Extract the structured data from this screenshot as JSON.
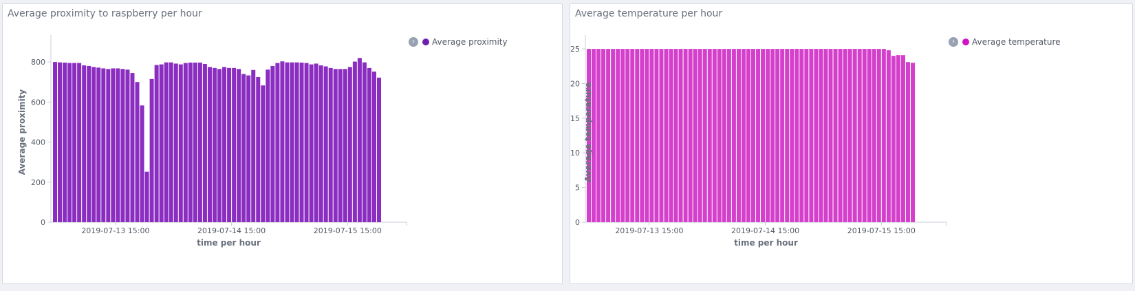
{
  "chart_data": [
    {
      "type": "bar",
      "title": "Average proximity to raspberry per hour",
      "xlabel": "time per hour",
      "ylabel": "Average proximity",
      "ylim": [
        0,
        900
      ],
      "yticks": [
        0,
        200,
        400,
        600,
        800
      ],
      "xtick_labels": [
        "2019-07-13 15:00",
        "2019-07-14 15:00",
        "2019-07-15 15:00"
      ],
      "xtick_positions": [
        12.5,
        36.5,
        60.5
      ],
      "grid": false,
      "legend": "top-right",
      "color": "#8a2dc0",
      "series": [
        {
          "name": "Average proximity",
          "values": [
            800,
            798,
            797,
            795,
            795,
            795,
            783,
            780,
            775,
            772,
            768,
            765,
            768,
            768,
            765,
            762,
            745,
            700,
            583,
            252,
            715,
            785,
            788,
            798,
            798,
            792,
            788,
            795,
            797,
            797,
            797,
            790,
            775,
            770,
            765,
            775,
            770,
            770,
            765,
            740,
            733,
            760,
            725,
            683,
            762,
            780,
            795,
            803,
            798,
            798,
            798,
            797,
            795,
            788,
            792,
            783,
            778,
            770,
            765,
            765,
            765,
            775,
            802,
            820,
            798,
            770,
            752,
            722
          ]
        }
      ]
    },
    {
      "type": "bar",
      "title": "Average temperature per hour",
      "xlabel": "time per hour",
      "ylabel": "Average temperature",
      "ylim": [
        0,
        26
      ],
      "yticks": [
        0,
        5,
        10,
        15,
        20,
        25
      ],
      "xtick_labels": [
        "2019-07-13 15:00",
        "2019-07-14 15:00",
        "2019-07-15 15:00"
      ],
      "xtick_positions": [
        12.5,
        36.5,
        60.5
      ],
      "grid": false,
      "legend": "top-right",
      "color": "#d43fcb",
      "series": [
        {
          "name": "Average temperature",
          "values": [
            25,
            25,
            25,
            25,
            25,
            25,
            25,
            25,
            25,
            25,
            25,
            25,
            25,
            25,
            25,
            25,
            25,
            25,
            25,
            25,
            25,
            25,
            25,
            25,
            25,
            25,
            25,
            25,
            25,
            25,
            25,
            25,
            25,
            25,
            25,
            25,
            25,
            25,
            25,
            25,
            25,
            25,
            25,
            25,
            25,
            25,
            25,
            25,
            25,
            25,
            25,
            25,
            25,
            25,
            25,
            25,
            25,
            25,
            25,
            25,
            25,
            25,
            24.8,
            24,
            24.1,
            24.1,
            23.1,
            23
          ]
        }
      ]
    }
  ],
  "legend_toggle_icon": "chevron-right-icon"
}
